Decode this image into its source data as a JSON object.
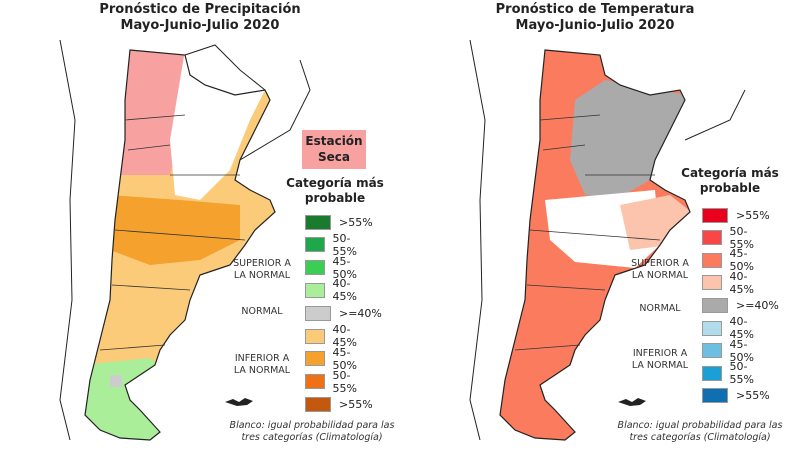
{
  "precip": {
    "title_line1": "Pronóstico de Precipitación",
    "title_line2": "Mayo-Junio-Julio 2020",
    "dry_season": "Estación Seca",
    "legend_title": "Categoría más probable",
    "groups": {
      "superior": "SUPERIOR A LA NORMAL",
      "normal": "NORMAL",
      "inferior": "INFERIOR A LA NORMAL"
    },
    "legend": [
      {
        "label": ">55%",
        "color": "#1a7a2e"
      },
      {
        "label": "50-55%",
        "color": "#1fa84a"
      },
      {
        "label": "45-50%",
        "color": "#3ccd55"
      },
      {
        "label": "40-45%",
        "color": "#aaee99"
      },
      {
        "label": ">=40%",
        "color": "#cccccc"
      },
      {
        "label": "40-45%",
        "color": "#fbcb7a"
      },
      {
        "label": "45-50%",
        "color": "#f5a12e"
      },
      {
        "label": "50-55%",
        "color": "#ef7016"
      },
      {
        "label": ">55%",
        "color": "#c4580f"
      }
    ],
    "note": "Blanco: igual probabilidad para las tres categorías (Climatología)"
  },
  "temp": {
    "title_line1": "Pronóstico de Temperatura",
    "title_line2": "Mayo-Junio-Julio 2020",
    "legend_title": "Categoría más probable",
    "groups": {
      "superior": "SUPERIOR A LA NORMAL",
      "normal": "NORMAL",
      "inferior": "INFERIOR A LA NORMAL"
    },
    "legend": [
      {
        "label": ">55%",
        "color": "#e8001c"
      },
      {
        "label": "50-55%",
        "color": "#f94646"
      },
      {
        "label": "45-50%",
        "color": "#fa7b5e"
      },
      {
        "label": "40-45%",
        "color": "#fcc4ad"
      },
      {
        "label": ">=40%",
        "color": "#aaaaaa"
      },
      {
        "label": "40-45%",
        "color": "#b2dcec"
      },
      {
        "label": "45-50%",
        "color": "#6cbfe0"
      },
      {
        "label": "50-55%",
        "color": "#1a9fd6"
      },
      {
        "label": ">55%",
        "color": "#0f6fb0"
      }
    ],
    "note": "Blanco: igual probabilidad para las tres categorías (Climatología)"
  }
}
